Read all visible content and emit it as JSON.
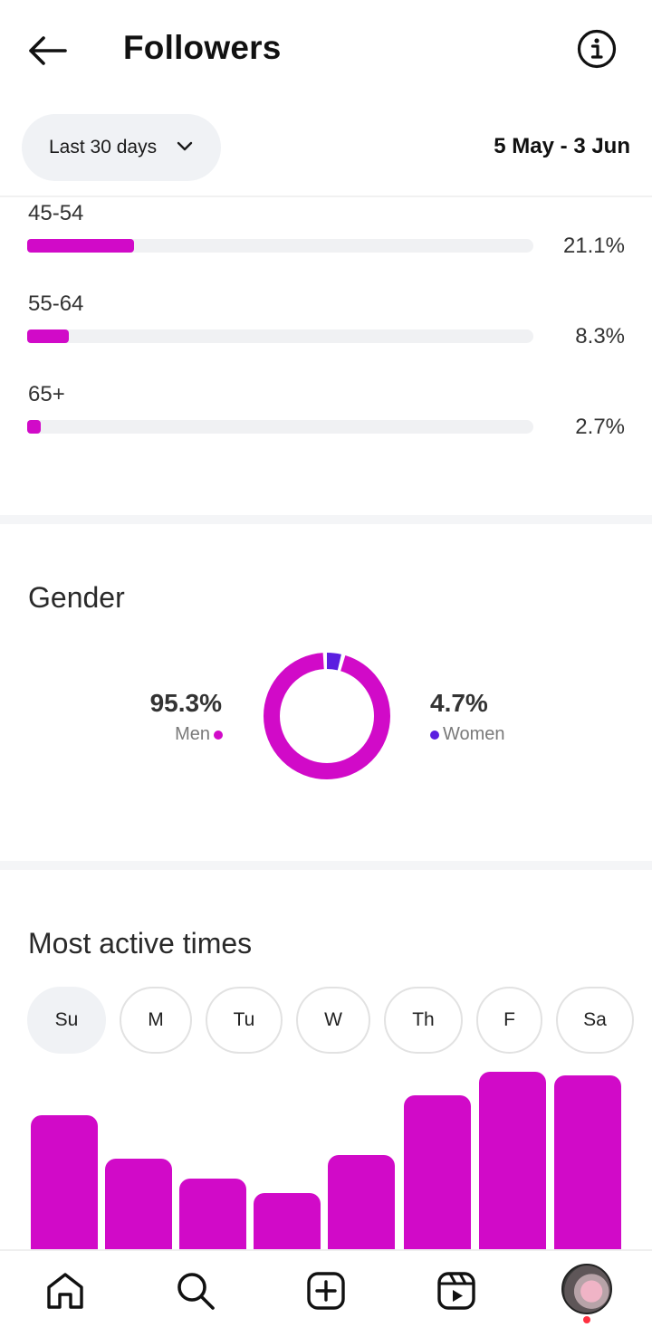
{
  "header": {
    "title": "Followers"
  },
  "filter": {
    "range_label": "Last 30 days",
    "date_range": "5 May - 3 Jun"
  },
  "age_groups": [
    {
      "label": "45-54",
      "percent": "21.1%",
      "value": 21.1
    },
    {
      "label": "55-64",
      "percent": "8.3%",
      "value": 8.3
    },
    {
      "label": "65+",
      "percent": "2.7%",
      "value": 2.7
    }
  ],
  "gender": {
    "title": "Gender",
    "men": {
      "percent": "95.3%",
      "label": "Men",
      "value": 95.3,
      "color": "#d10ac8"
    },
    "women": {
      "percent": "4.7%",
      "label": "Women",
      "value": 4.7,
      "color": "#5b1fe0"
    }
  },
  "active_times": {
    "title": "Most active times",
    "days": [
      "Su",
      "M",
      "Tu",
      "W",
      "Th",
      "F",
      "Sa"
    ],
    "selected_day": "Su",
    "bar_levels": [
      0.74,
      0.5,
      0.39,
      0.31,
      0.52,
      0.85,
      0.98,
      0.96
    ]
  },
  "colors": {
    "accent": "#d10ac8",
    "women": "#5b1fe0"
  },
  "nav": {
    "items": [
      "home-icon",
      "search-icon",
      "create-icon",
      "reels-icon",
      "profile-avatar"
    ]
  }
}
